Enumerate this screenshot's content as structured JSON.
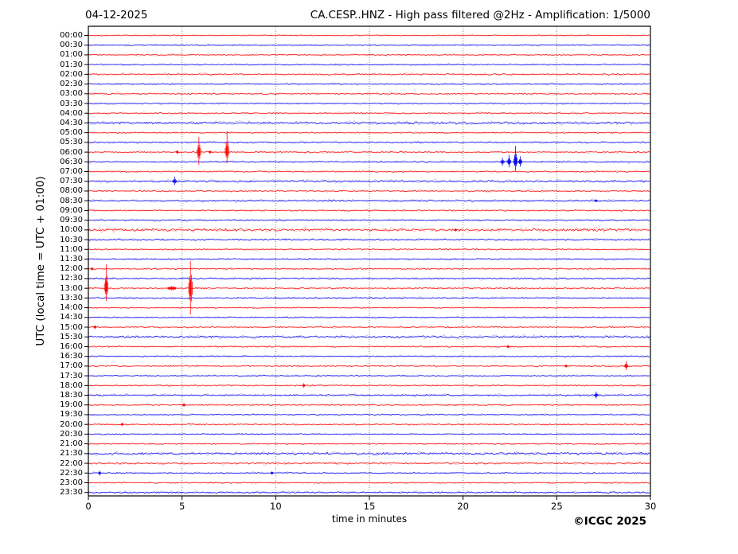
{
  "header": {
    "date": "04-12-2025",
    "title": "CA.CESP..HNZ - High pass filtered @2Hz - Amplification: 1/5000"
  },
  "footer": {
    "copyright": "©ICGC 2025"
  },
  "colors": {
    "red": "#ff0000",
    "blue": "#0000ee",
    "grid": "#777777",
    "axis": "#000000"
  },
  "chart_data": {
    "type": "line",
    "title": "CA.CESP..HNZ - High pass filtered @2Hz - Amplification: 1/5000",
    "date": "04-12-2025",
    "xlabel": "time in minutes",
    "ylabel": "UTC (local time = UTC + 01:00)",
    "x_range": [
      0,
      30
    ],
    "x_ticks": [
      0,
      5,
      10,
      15,
      20,
      25,
      30
    ],
    "x_gridlines": [
      5,
      10,
      15,
      20,
      25
    ],
    "grid": "vertical-dotted",
    "rows": [
      {
        "t": "00:00",
        "c": "red",
        "n": 0.9
      },
      {
        "t": "00:30",
        "c": "blue",
        "n": 1.0
      },
      {
        "t": "01:00",
        "c": "red",
        "n": 1.1
      },
      {
        "t": "01:30",
        "c": "blue",
        "n": 1.0
      },
      {
        "t": "02:00",
        "c": "red",
        "n": 1.3
      },
      {
        "t": "02:30",
        "c": "blue",
        "n": 1.1
      },
      {
        "t": "03:00",
        "c": "red",
        "n": 1.3
      },
      {
        "t": "03:30",
        "c": "blue",
        "n": 1.0
      },
      {
        "t": "04:00",
        "c": "red",
        "n": 1.2
      },
      {
        "t": "04:30",
        "c": "blue",
        "n": 1.9
      },
      {
        "t": "05:00",
        "c": "red",
        "n": 1.1
      },
      {
        "t": "05:30",
        "c": "blue",
        "n": 1.2
      },
      {
        "t": "06:00",
        "c": "red",
        "n": 1.3
      },
      {
        "t": "06:30",
        "c": "blue",
        "n": 1.2
      },
      {
        "t": "07:00",
        "c": "red",
        "n": 1.3
      },
      {
        "t": "07:30",
        "c": "blue",
        "n": 1.7
      },
      {
        "t": "08:00",
        "c": "red",
        "n": 1.2
      },
      {
        "t": "08:30",
        "c": "blue",
        "n": 1.4
      },
      {
        "t": "09:00",
        "c": "red",
        "n": 1.2
      },
      {
        "t": "09:30",
        "c": "blue",
        "n": 1.2
      },
      {
        "t": "10:00",
        "c": "red",
        "n": 2.3
      },
      {
        "t": "10:30",
        "c": "blue",
        "n": 1.3
      },
      {
        "t": "11:00",
        "c": "red",
        "n": 1.2
      },
      {
        "t": "11:30",
        "c": "blue",
        "n": 1.1
      },
      {
        "t": "12:00",
        "c": "red",
        "n": 1.2
      },
      {
        "t": "12:30",
        "c": "blue",
        "n": 1.3
      },
      {
        "t": "13:00",
        "c": "red",
        "n": 1.4
      },
      {
        "t": "13:30",
        "c": "blue",
        "n": 1.2
      },
      {
        "t": "14:00",
        "c": "red",
        "n": 1.0
      },
      {
        "t": "14:30",
        "c": "blue",
        "n": 1.0
      },
      {
        "t": "15:00",
        "c": "red",
        "n": 1.1
      },
      {
        "t": "15:30",
        "c": "blue",
        "n": 1.8
      },
      {
        "t": "16:00",
        "c": "red",
        "n": 1.2
      },
      {
        "t": "16:30",
        "c": "blue",
        "n": 1.1
      },
      {
        "t": "17:00",
        "c": "red",
        "n": 1.1
      },
      {
        "t": "17:30",
        "c": "blue",
        "n": 1.0
      },
      {
        "t": "18:00",
        "c": "red",
        "n": 1.2
      },
      {
        "t": "18:30",
        "c": "blue",
        "n": 1.5
      },
      {
        "t": "19:00",
        "c": "red",
        "n": 1.1
      },
      {
        "t": "19:30",
        "c": "blue",
        "n": 1.0
      },
      {
        "t": "20:00",
        "c": "red",
        "n": 1.1
      },
      {
        "t": "20:30",
        "c": "blue",
        "n": 1.0
      },
      {
        "t": "21:00",
        "c": "red",
        "n": 1.1
      },
      {
        "t": "21:30",
        "c": "blue",
        "n": 2.0
      },
      {
        "t": "22:00",
        "c": "red",
        "n": 1.5
      },
      {
        "t": "22:30",
        "c": "blue",
        "n": 1.1
      },
      {
        "t": "23:00",
        "c": "red",
        "n": 1.1
      },
      {
        "t": "23:30",
        "c": "blue",
        "n": 1.4
      }
    ],
    "events": [
      {
        "t": "06:00",
        "minute": 4.75,
        "up": 2.5,
        "down": 2.5
      },
      {
        "t": "06:00",
        "minute": 5.9,
        "up": 19,
        "down": 16
      },
      {
        "t": "06:00",
        "minute": 6.5,
        "up": 2,
        "down": 2
      },
      {
        "t": "06:00",
        "minute": 7.4,
        "up": 26,
        "down": 14
      },
      {
        "t": "06:30",
        "minute": 22.1,
        "up": 5,
        "down": 5
      },
      {
        "t": "06:30",
        "minute": 22.45,
        "up": 9,
        "down": 7
      },
      {
        "t": "06:30",
        "minute": 22.8,
        "up": 20,
        "down": 11
      },
      {
        "t": "06:30",
        "minute": 23.05,
        "up": 7,
        "down": 6
      },
      {
        "t": "07:30",
        "minute": 4.6,
        "up": 6,
        "down": 5
      },
      {
        "t": "08:30",
        "minute": 27.1,
        "up": 1.8,
        "down": 1.8
      },
      {
        "t": "10:00",
        "minute": 19.6,
        "up": 2,
        "down": 2
      },
      {
        "t": "12:00",
        "minute": 0.2,
        "up": 2,
        "down": 2
      },
      {
        "t": "13:00",
        "minute": 0.95,
        "up": 30,
        "down": 16
      },
      {
        "t": "13:00",
        "minute": 4.45,
        "up": 3,
        "down": 3,
        "cluster": true
      },
      {
        "t": "13:00",
        "minute": 5.45,
        "up": 34,
        "down": 33
      },
      {
        "t": "15:00",
        "minute": 0.35,
        "up": 2.5,
        "down": 2.5
      },
      {
        "t": "16:00",
        "minute": 22.4,
        "up": 2,
        "down": 2
      },
      {
        "t": "17:00",
        "minute": 25.5,
        "up": 1.8,
        "down": 1.8
      },
      {
        "t": "17:00",
        "minute": 28.7,
        "up": 6,
        "down": 5
      },
      {
        "t": "18:00",
        "minute": 11.5,
        "up": 3,
        "down": 3
      },
      {
        "t": "18:30",
        "minute": 27.1,
        "up": 4.5,
        "down": 4
      },
      {
        "t": "19:00",
        "minute": 5.1,
        "up": 2.5,
        "down": 2.5
      },
      {
        "t": "20:00",
        "minute": 1.8,
        "up": 2,
        "down": 2
      },
      {
        "t": "22:30",
        "minute": 0.6,
        "up": 3,
        "down": 3
      },
      {
        "t": "22:30",
        "minute": 9.8,
        "up": 2,
        "down": 2
      }
    ]
  }
}
